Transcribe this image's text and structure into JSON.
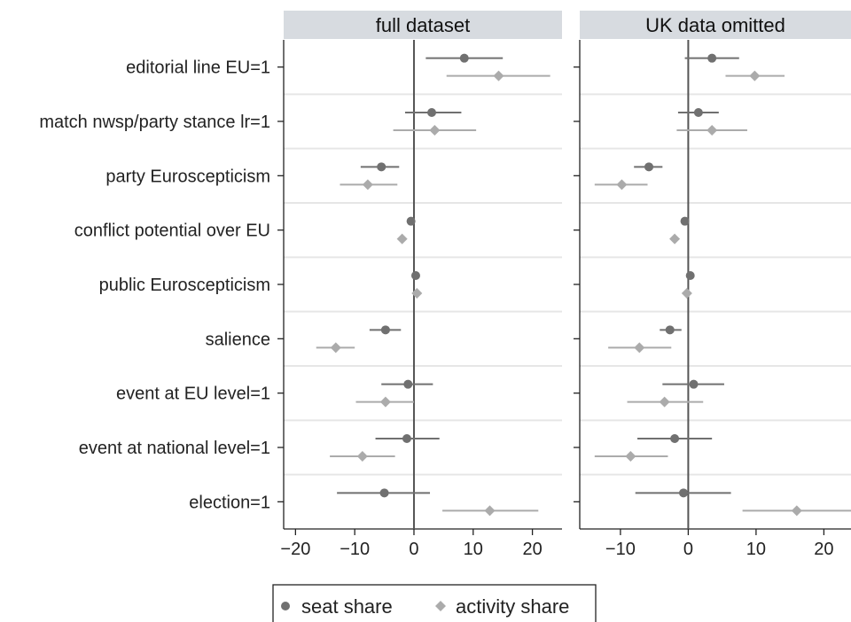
{
  "chart_data": {
    "type": "scatter",
    "variant": "coefficient-plot-with-confidence-intervals",
    "rows": [
      "editorial line EU=1",
      "match nwsp/party stance lr=1",
      "party Euroscepticism",
      "conflict potential over EU",
      "public Euroscepticism",
      "salience",
      "event at EU level=1",
      "event at national level=1",
      "election=1"
    ],
    "series": [
      {
        "name": "seat share",
        "marker": "circle",
        "color": "#707070"
      },
      {
        "name": "activity share",
        "marker": "diamond",
        "color": "#ababab"
      }
    ],
    "panels": [
      {
        "title": "full dataset",
        "xlim": [
          -22,
          25
        ],
        "xticks": [
          -20,
          -10,
          0,
          10,
          20
        ],
        "xtick_labels": [
          "−20",
          "−10",
          "0",
          "10",
          "20"
        ],
        "points": {
          "seat share": [
            {
              "est": 8.5,
              "lo": 2.0,
              "hi": 15.0
            },
            {
              "est": 3.0,
              "lo": -1.5,
              "hi": 8.0
            },
            {
              "est": -5.5,
              "lo": -9.0,
              "hi": -2.5
            },
            {
              "est": -0.5,
              "lo": -0.6,
              "hi": -0.4
            },
            {
              "est": 0.3,
              "lo": 0.2,
              "hi": 0.4
            },
            {
              "est": -4.8,
              "lo": -7.5,
              "hi": -2.2
            },
            {
              "est": -1.0,
              "lo": -5.5,
              "hi": 3.2
            },
            {
              "est": -1.2,
              "lo": -6.5,
              "hi": 4.3
            },
            {
              "est": -5.0,
              "lo": -13.0,
              "hi": 2.7
            }
          ],
          "activity share": [
            {
              "est": 14.3,
              "lo": 5.5,
              "hi": 23.0
            },
            {
              "est": 3.5,
              "lo": -3.5,
              "hi": 10.5
            },
            {
              "est": -7.8,
              "lo": -12.5,
              "hi": -2.8
            },
            {
              "est": -2.0,
              "lo": -2.1,
              "hi": -1.9
            },
            {
              "est": 0.5,
              "lo": 0.4,
              "hi": 0.6
            },
            {
              "est": -13.2,
              "lo": -16.5,
              "hi": -10.0
            },
            {
              "est": -4.8,
              "lo": -9.8,
              "hi": 0.0
            },
            {
              "est": -8.7,
              "lo": -14.2,
              "hi": -3.2
            },
            {
              "est": 12.8,
              "lo": 4.8,
              "hi": 21.0
            }
          ]
        }
      },
      {
        "title": "UK data omitted",
        "xlim": [
          -16,
          24
        ],
        "xticks": [
          -10,
          0,
          10,
          20
        ],
        "xtick_labels": [
          "−10",
          "0",
          "10",
          "20"
        ],
        "points": {
          "seat share": [
            {
              "est": 3.5,
              "lo": -0.5,
              "hi": 7.5
            },
            {
              "est": 1.5,
              "lo": -1.5,
              "hi": 4.5
            },
            {
              "est": -5.8,
              "lo": -8.0,
              "hi": -3.8
            },
            {
              "est": -0.5,
              "lo": -0.6,
              "hi": -0.4
            },
            {
              "est": 0.3,
              "lo": 0.2,
              "hi": 0.4
            },
            {
              "est": -2.7,
              "lo": -4.2,
              "hi": -1.0
            },
            {
              "est": 0.8,
              "lo": -3.8,
              "hi": 5.3
            },
            {
              "est": -2.0,
              "lo": -7.5,
              "hi": 3.5
            },
            {
              "est": -0.7,
              "lo": -7.8,
              "hi": 6.3
            }
          ],
          "activity share": [
            {
              "est": 9.8,
              "lo": 5.5,
              "hi": 14.2
            },
            {
              "est": 3.5,
              "lo": -1.7,
              "hi": 8.7
            },
            {
              "est": -9.8,
              "lo": -13.8,
              "hi": -6.0
            },
            {
              "est": -2.0,
              "lo": -2.1,
              "hi": -1.9
            },
            {
              "est": -0.2,
              "lo": -0.3,
              "hi": -0.1
            },
            {
              "est": -7.2,
              "lo": -11.8,
              "hi": -2.5
            },
            {
              "est": -3.5,
              "lo": -9.0,
              "hi": 2.2
            },
            {
              "est": -8.5,
              "lo": -13.8,
              "hi": -3.0
            },
            {
              "est": 16.0,
              "lo": 8.0,
              "hi": 24.0
            }
          ]
        }
      }
    ],
    "grid": true,
    "legend_position": "bottom"
  }
}
